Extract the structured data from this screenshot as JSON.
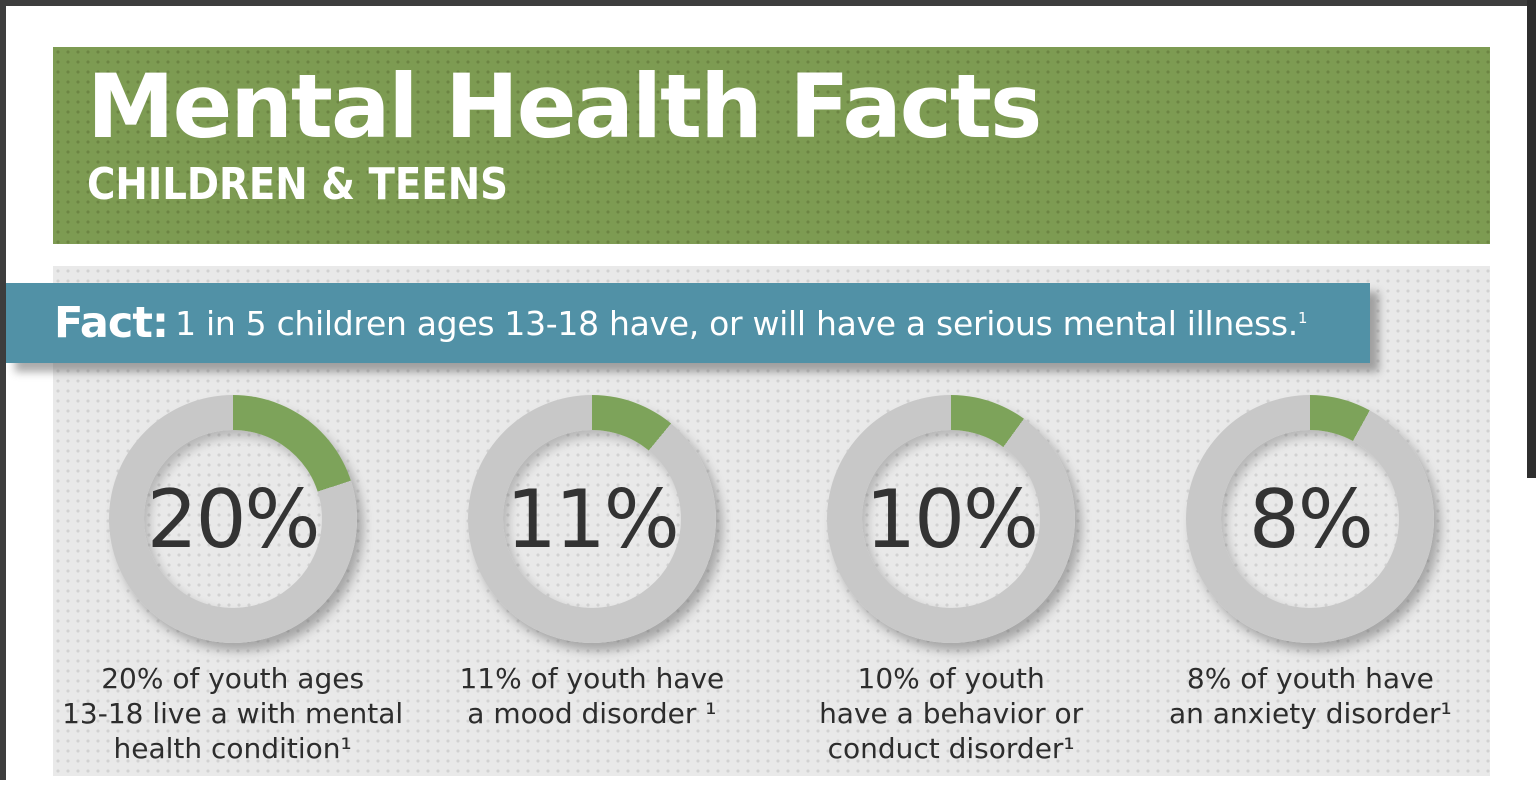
{
  "header": {
    "title": "Mental Health Facts",
    "subtitle": "CHILDREN & TEENS",
    "bg_color": "#7d9b52"
  },
  "fact_banner": {
    "label": "Fact:",
    "text": "1 in 5 children ages 13-18 have, or will have a serious mental illness.",
    "superscript": "1",
    "bg_color": "#5191a6"
  },
  "cards": [
    {
      "percent_label": "20%",
      "percent": 20,
      "lines": [
        "20% of youth ages",
        "13-18 live a with mental",
        "health condition¹"
      ]
    },
    {
      "percent_label": "11%",
      "percent": 11,
      "lines": [
        "11% of youth have",
        "a mood disorder ¹"
      ]
    },
    {
      "percent_label": "10%",
      "percent": 10,
      "lines": [
        "10% of youth",
        "have a behavior or",
        "conduct disorder¹"
      ]
    },
    {
      "percent_label": "8%",
      "percent": 8,
      "lines": [
        "8% of youth have",
        "an anxiety disorder¹"
      ]
    }
  ],
  "chart_data": {
    "type": "donut",
    "title": "Mental Health Facts — Children & Teens",
    "annotation": "Fact: 1 in 5 children ages 13-18 have, or will have a serious mental illness.",
    "series": [
      {
        "name": "20% of youth ages 13-18 live a with mental health condition",
        "value_pct": 20
      },
      {
        "name": "11% of youth have a mood disorder",
        "value_pct": 11
      },
      {
        "name": "10% of youth have a behavior or conduct disorder",
        "value_pct": 10
      },
      {
        "name": "8% of youth have an anxiety disorder",
        "value_pct": 8
      }
    ],
    "value_range": [
      0,
      100
    ],
    "start_angle_deg": 0,
    "direction": "clockwise",
    "colors": {
      "filled": "#7da35a",
      "remainder": "#c8c8c8"
    }
  }
}
